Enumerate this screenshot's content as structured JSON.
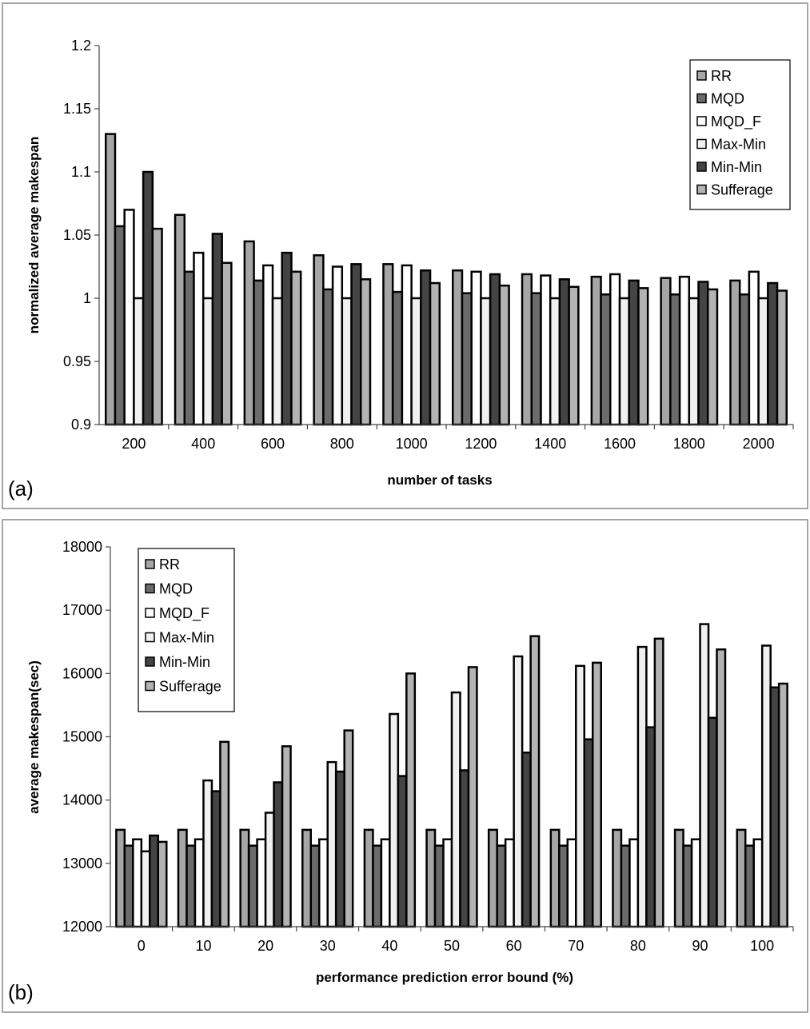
{
  "chart_data": [
    {
      "type": "bar",
      "panel_label": "(a)",
      "title": "",
      "xlabel": "number of tasks",
      "ylabel": "normalized average makespan",
      "ylim": [
        0.9,
        1.2
      ],
      "yticks": [
        "0.9",
        "0.95",
        "1",
        "1.05",
        "1.1",
        "1.15",
        "1.2"
      ],
      "grid": false,
      "legend_position": "top-right",
      "categories": [
        "200",
        "400",
        "600",
        "800",
        "1000",
        "1200",
        "1400",
        "1600",
        "1800",
        "2000"
      ],
      "series": [
        {
          "name": "RR",
          "color": "#a6a6a6",
          "values": [
            1.13,
            1.066,
            1.045,
            1.034,
            1.027,
            1.022,
            1.019,
            1.017,
            1.016,
            1.014
          ]
        },
        {
          "name": "MQD",
          "color": "#6b6b6b",
          "values": [
            1.057,
            1.021,
            1.014,
            1.007,
            1.005,
            1.004,
            1.004,
            1.003,
            1.003,
            1.003
          ]
        },
        {
          "name": "MQD_F",
          "color": "#ffffff",
          "values": [
            1.07,
            1.036,
            1.026,
            1.025,
            1.026,
            1.021,
            1.018,
            1.019,
            1.017,
            1.021
          ]
        },
        {
          "name": "Max-Min",
          "color": "#f0f0f0",
          "values": [
            1.0,
            1.0,
            1.0,
            1.0,
            1.0,
            1.0,
            1.0,
            1.0,
            1.0,
            1.0
          ]
        },
        {
          "name": "Min-Min",
          "color": "#444444",
          "values": [
            1.1,
            1.051,
            1.036,
            1.027,
            1.022,
            1.019,
            1.015,
            1.014,
            1.013,
            1.012
          ]
        },
        {
          "name": "Sufferage",
          "color": "#b3b3b3",
          "values": [
            1.055,
            1.028,
            1.021,
            1.015,
            1.012,
            1.01,
            1.009,
            1.008,
            1.007,
            1.006
          ]
        }
      ]
    },
    {
      "type": "bar",
      "panel_label": "(b)",
      "title": "",
      "xlabel": "performance prediction error bound (%)",
      "ylabel": "average makespan(sec)",
      "ylim": [
        12000,
        18000
      ],
      "yticks": [
        "12000",
        "13000",
        "14000",
        "15000",
        "16000",
        "17000",
        "18000"
      ],
      "grid": false,
      "legend_position": "top-left",
      "categories": [
        "0",
        "10",
        "20",
        "30",
        "40",
        "50",
        "60",
        "70",
        "80",
        "90",
        "100"
      ],
      "series": [
        {
          "name": "RR",
          "color": "#a6a6a6",
          "values": [
            13530,
            13530,
            13530,
            13530,
            13530,
            13530,
            13530,
            13530,
            13530,
            13530,
            13530
          ]
        },
        {
          "name": "MQD",
          "color": "#6b6b6b",
          "values": [
            13280,
            13280,
            13280,
            13280,
            13280,
            13280,
            13280,
            13280,
            13280,
            13280,
            13280
          ]
        },
        {
          "name": "MQD_F",
          "color": "#ffffff",
          "values": [
            13380,
            13380,
            13380,
            13380,
            13380,
            13380,
            13380,
            13380,
            13380,
            13380,
            13380
          ]
        },
        {
          "name": "Max-Min",
          "color": "#f0f0f0",
          "values": [
            13190,
            14310,
            13800,
            14600,
            15360,
            15700,
            16270,
            16120,
            16420,
            16780,
            16440
          ]
        },
        {
          "name": "Min-Min",
          "color": "#444444",
          "values": [
            13440,
            14140,
            14280,
            14450,
            14380,
            14470,
            14750,
            14960,
            15150,
            15300,
            15780
          ]
        },
        {
          "name": "Sufferage",
          "color": "#b3b3b3",
          "values": [
            13340,
            14920,
            14850,
            15100,
            16000,
            16100,
            16590,
            16170,
            16550,
            16380,
            15840
          ]
        }
      ]
    }
  ]
}
